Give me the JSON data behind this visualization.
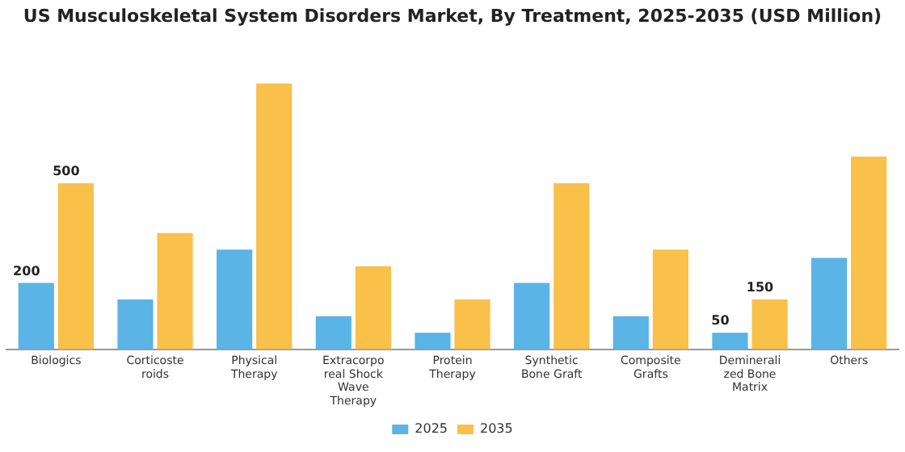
{
  "chart_data": {
    "type": "bar",
    "title": "US Musculoskeletal System Disorders Market, By Treatment, 2025-2035 (USD Million)",
    "categories": [
      "Biologics",
      "Corticosteroids",
      "Physical Therapy",
      "Extracorporeal Shock Wave Therapy",
      "Protein Therapy",
      "Synthetic Bone Graft",
      "Composite Grafts",
      "Demineralized Bone Matrix",
      "Others"
    ],
    "series": [
      {
        "name": "2025",
        "color": "#5ab4e5",
        "values": [
          200,
          150,
          300,
          100,
          50,
          200,
          100,
          50,
          275
        ],
        "value_labels": [
          "200",
          null,
          null,
          null,
          null,
          null,
          null,
          "50",
          null
        ]
      },
      {
        "name": "2035",
        "color": "#f9c04a",
        "values": [
          500,
          350,
          800,
          250,
          150,
          500,
          300,
          150,
          580
        ],
        "value_labels": [
          "500",
          null,
          null,
          null,
          null,
          null,
          null,
          "150",
          null
        ]
      }
    ],
    "legend": "bottom",
    "grid": false
  }
}
